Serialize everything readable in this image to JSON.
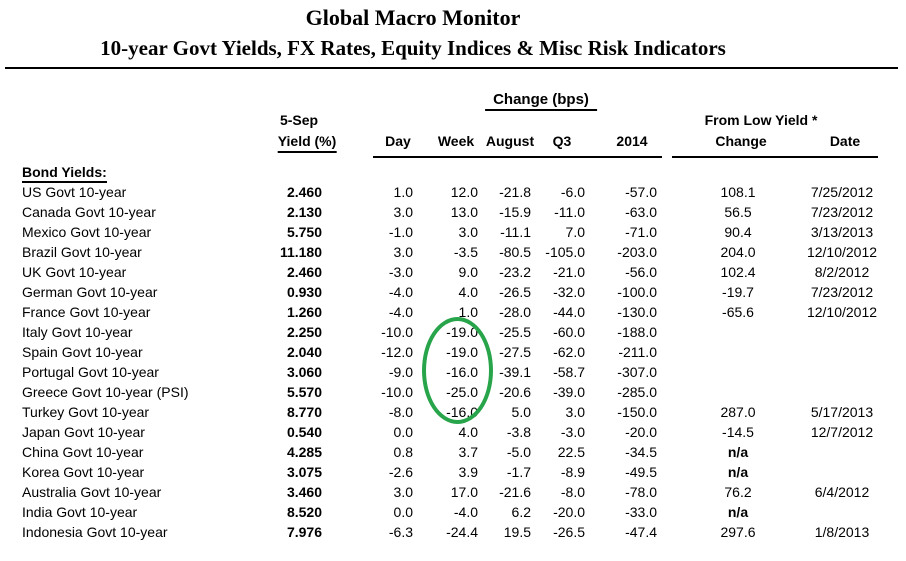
{
  "header": {
    "title": "Global Macro Monitor",
    "subtitle": "10-year Govt Yields, FX Rates, Equity Indices & Misc Risk Indicators"
  },
  "table": {
    "group_header": "Change (bps)",
    "headers": {
      "date_label": "5-Sep",
      "yield_label": "Yield (%)",
      "day": "Day",
      "week": "Week",
      "august": "August",
      "q3": "Q3",
      "year2014": "2014",
      "from_low": "From Low Yield  *",
      "low_change": "Change",
      "low_date": "Date"
    },
    "section_label": "Bond Yields:",
    "rows": [
      {
        "label": "US Govt 10-year",
        "yield": "2.460",
        "day": "1.0",
        "week": "12.0",
        "august": "-21.8",
        "q3": "-6.0",
        "y2014": "-57.0",
        "change": "108.1",
        "date": "7/25/2012"
      },
      {
        "label": "Canada Govt 10-year",
        "yield": "2.130",
        "day": "3.0",
        "week": "13.0",
        "august": "-15.9",
        "q3": "-11.0",
        "y2014": "-63.0",
        "change": "56.5",
        "date": "7/23/2012"
      },
      {
        "label": "Mexico Govt 10-year",
        "yield": "5.750",
        "day": "-1.0",
        "week": "3.0",
        "august": "-11.1",
        "q3": "7.0",
        "y2014": "-71.0",
        "change": "90.4",
        "date": "3/13/2013"
      },
      {
        "label": "Brazil Govt 10-year",
        "yield": "11.180",
        "day": "3.0",
        "week": "-3.5",
        "august": "-80.5",
        "q3": "-105.0",
        "y2014": "-203.0",
        "change": "204.0",
        "date": "12/10/2012"
      },
      {
        "label": "UK Govt 10-year",
        "yield": "2.460",
        "day": "-3.0",
        "week": "9.0",
        "august": "-23.2",
        "q3": "-21.0",
        "y2014": "-56.0",
        "change": "102.4",
        "date": "8/2/2012"
      },
      {
        "label": "German Govt 10-year",
        "yield": "0.930",
        "day": "-4.0",
        "week": "4.0",
        "august": "-26.5",
        "q3": "-32.0",
        "y2014": "-100.0",
        "change": "-19.7",
        "date": "7/23/2012"
      },
      {
        "label": "France Govt 10-year",
        "yield": "1.260",
        "day": "-4.0",
        "week": "1.0",
        "august": "-28.0",
        "q3": "-44.0",
        "y2014": "-130.0",
        "change": "-65.6",
        "date": "12/10/2012"
      },
      {
        "label": "Italy Govt 10-year",
        "yield": "2.250",
        "day": "-10.0",
        "week": "-19.0",
        "august": "-25.5",
        "q3": "-60.0",
        "y2014": "-188.0",
        "change": "",
        "date": ""
      },
      {
        "label": "Spain Govt 10-year",
        "yield": "2.040",
        "day": "-12.0",
        "week": "-19.0",
        "august": "-27.5",
        "q3": "-62.0",
        "y2014": "-211.0",
        "change": "",
        "date": ""
      },
      {
        "label": "Portugal Govt 10-year",
        "yield": "3.060",
        "day": "-9.0",
        "week": "-16.0",
        "august": "-39.1",
        "q3": "-58.7",
        "y2014": "-307.0",
        "change": "",
        "date": ""
      },
      {
        "label": "Greece Govt 10-year (PSI)",
        "yield": "5.570",
        "day": "-10.0",
        "week": "-25.0",
        "august": "-20.6",
        "q3": "-39.0",
        "y2014": "-285.0",
        "change": "",
        "date": ""
      },
      {
        "label": "Turkey Govt 10-year",
        "yield": "8.770",
        "day": "-8.0",
        "week": "-16.0",
        "august": "5.0",
        "q3": "3.0",
        "y2014": "-150.0",
        "change": "287.0",
        "date": "5/17/2013"
      },
      {
        "label": "Japan Govt 10-year",
        "yield": "0.540",
        "day": "0.0",
        "week": "4.0",
        "august": "-3.8",
        "q3": "-3.0",
        "y2014": "-20.0",
        "change": "-14.5",
        "date": "12/7/2012"
      },
      {
        "label": "China Govt 10-year",
        "yield": "4.285",
        "day": "0.8",
        "week": "3.7",
        "august": "-5.0",
        "q3": "22.5",
        "y2014": "-34.5",
        "change": "n/a",
        "date": ""
      },
      {
        "label": "Korea Govt 10-year",
        "yield": "3.075",
        "day": "-2.6",
        "week": "3.9",
        "august": "-1.7",
        "q3": "-8.9",
        "y2014": "-49.5",
        "change": "n/a",
        "date": ""
      },
      {
        "label": "Australia Govt 10-year",
        "yield": "3.460",
        "day": "3.0",
        "week": "17.0",
        "august": "-21.6",
        "q3": "-8.0",
        "y2014": "-78.0",
        "change": "76.2",
        "date": "6/4/2012"
      },
      {
        "label": "India Govt 10-year",
        "yield": "8.520",
        "day": "0.0",
        "week": "-4.0",
        "august": "6.2",
        "q3": "-20.0",
        "y2014": "-33.0",
        "change": "n/a",
        "date": ""
      },
      {
        "label": "Indonesia Govt 10-year",
        "yield": "7.976",
        "day": "-6.3",
        "week": "-24.4",
        "august": "19.5",
        "q3": "-26.5",
        "y2014": "-47.4",
        "change": "297.6",
        "date": "1/8/2013"
      }
    ]
  },
  "annotation": {
    "shape": "ellipse",
    "color": "#28a54b"
  }
}
